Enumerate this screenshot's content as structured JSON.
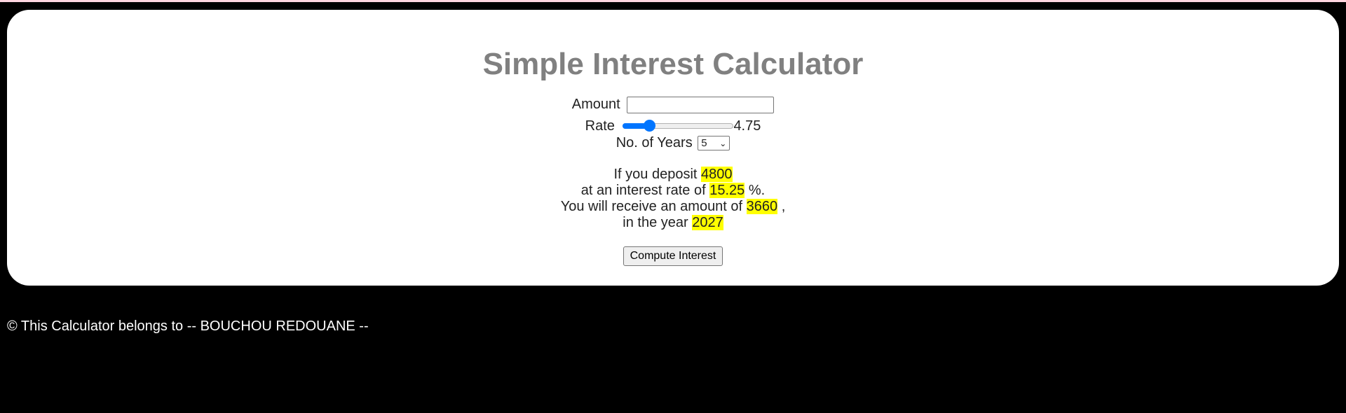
{
  "title": "Simple Interest Calculator",
  "form": {
    "amount_label": "Amount",
    "amount_value": "",
    "rate_label": "Rate",
    "rate_value": "4.75",
    "rate_fraction": 0.24,
    "years_label": "No. of Years",
    "years_selected": "5"
  },
  "result": {
    "deposit_prefix": "If you deposit",
    "deposit_value": "4800",
    "rate_prefix": "at an interest rate of",
    "rate_value": "15.25",
    "rate_suffix": "%.",
    "amount_prefix": "You will receive an amount of",
    "amount_value": "3660",
    "amount_suffix": ",",
    "year_prefix": "in the year",
    "year_value": "2027"
  },
  "button": {
    "compute_label": "Compute Interest"
  },
  "footer": {
    "text": "© This Calculator belongs to -- BOUCHOU REDOUANE --"
  },
  "colors": {
    "background": "#000000",
    "card": "#ffffff",
    "title": "#808080",
    "highlight": "#ffff00",
    "slider": "#0075ff"
  }
}
